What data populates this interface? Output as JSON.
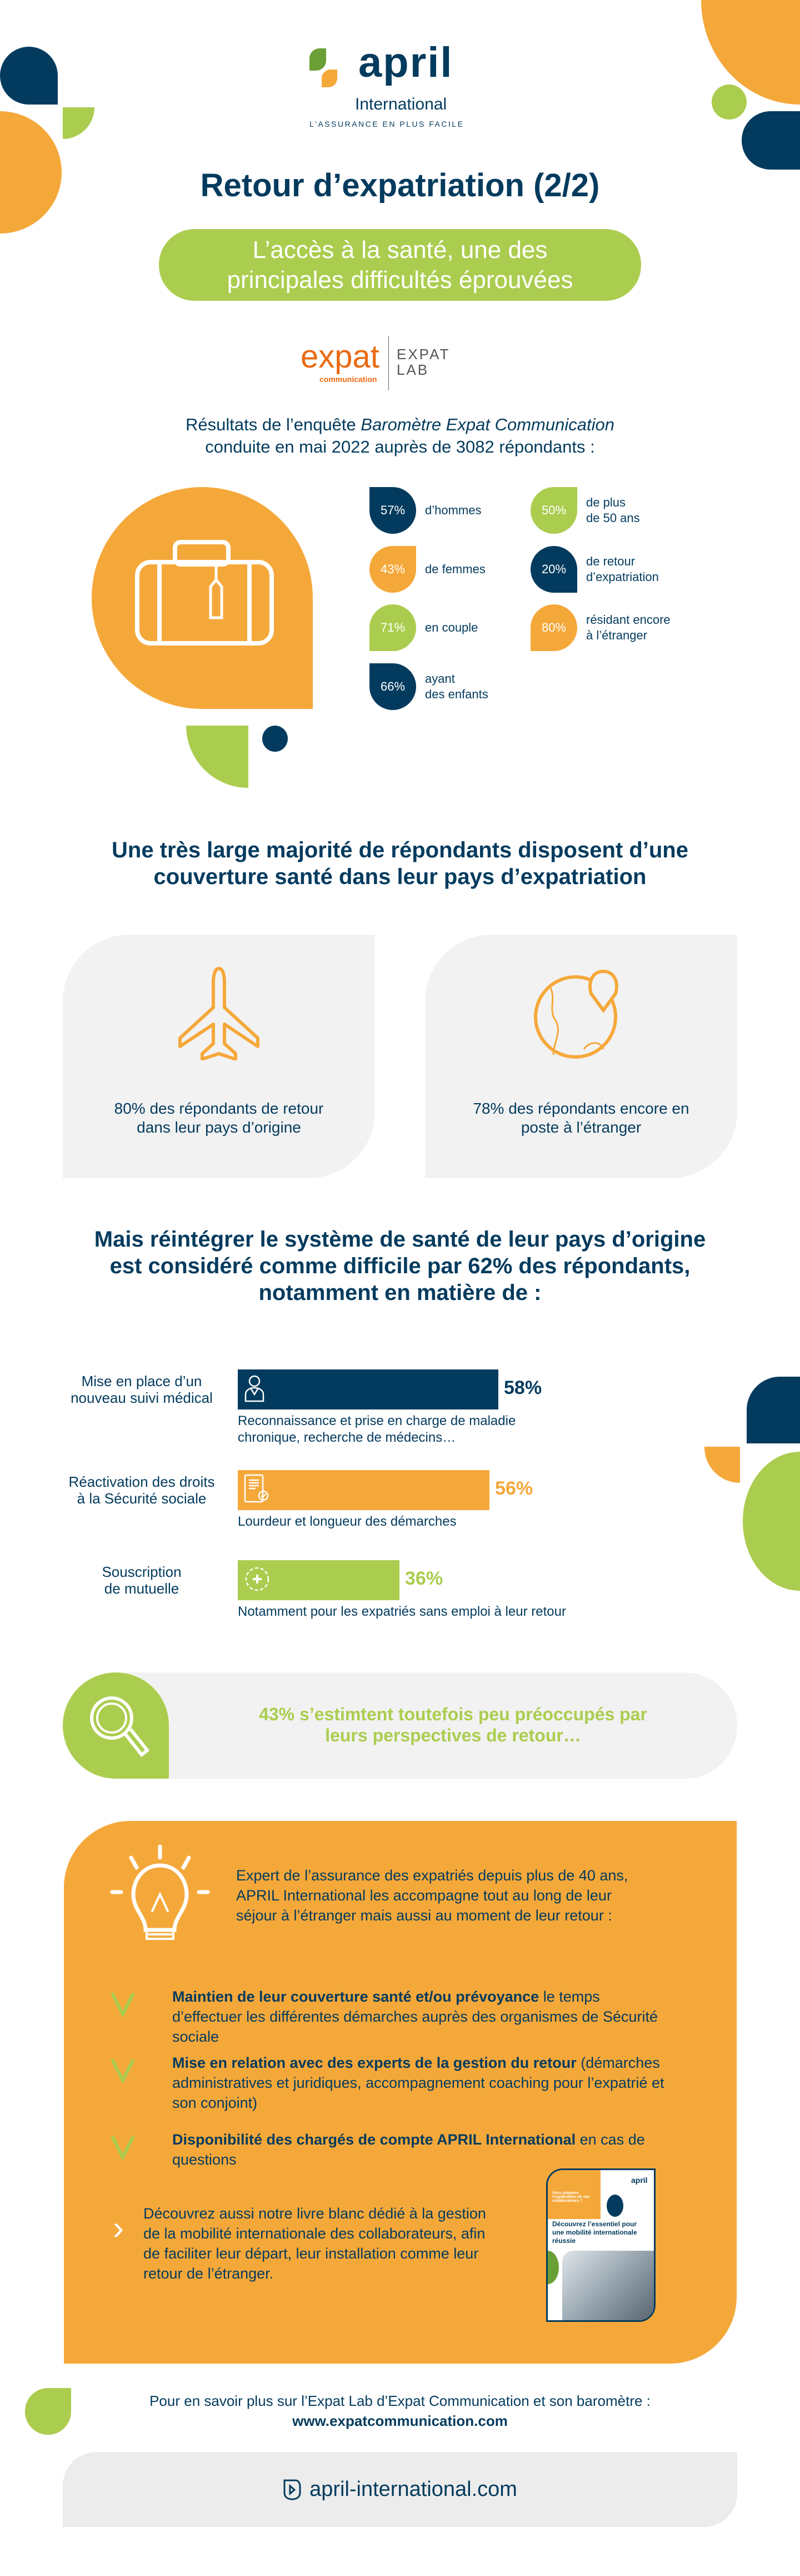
{
  "colors": {
    "navy": "#033b5e",
    "orange": "#f5a83a",
    "green": "#abcd4f",
    "light_gray": "#f2f2f2"
  },
  "logo": {
    "brand": "april",
    "sub": "International",
    "tagline": "L'ASSURANCE EN PLUS FACILE"
  },
  "title": "Retour d’expatriation (2/2)",
  "subtitle_lines": [
    "L’accès à la santé, une des",
    "principales difficultés éprouvées"
  ],
  "partner_logo": {
    "name": "expat",
    "sub": "communication",
    "lab_line1": "EXPAT",
    "lab_line2": "LAB"
  },
  "intro": {
    "prefix": "Résultats de l’enquête ",
    "italic": "Baromètre Expat Communication",
    "line2": "conduite en mai 2022 auprès de 3082 répondants :"
  },
  "stats": [
    {
      "value": "57%",
      "label": [
        "d’hommes"
      ],
      "color": "navy"
    },
    {
      "value": "43%",
      "label": [
        "de femmes"
      ],
      "color": "orange"
    },
    {
      "value": "71%",
      "label": [
        "en couple"
      ],
      "color": "green"
    },
    {
      "value": "66%",
      "label": [
        "ayant",
        "des enfants"
      ],
      "color": "navy"
    },
    {
      "value": "50%",
      "label": [
        "de plus",
        "de 50 ans"
      ],
      "color": "green"
    },
    {
      "value": "20%",
      "label": [
        "de retour",
        "d’expatriation"
      ],
      "color": "navy"
    },
    {
      "value": "80%",
      "label": [
        "résidant encore",
        "à l’étranger"
      ],
      "color": "orange"
    }
  ],
  "section2": {
    "heading": [
      "Une très large majorité de répondants disposent d’une",
      "couverture santé dans leur pays d’expatriation"
    ],
    "cards": [
      {
        "icon": "airplane-icon",
        "text": [
          "80% des répondants de retour",
          "dans leur pays d’origine"
        ]
      },
      {
        "icon": "globe-pin-icon",
        "text": [
          "78% des répondants encore en",
          "poste à l’étranger"
        ]
      }
    ]
  },
  "section3": {
    "heading": [
      "Mais réintégrer le système de santé de leur pays d’origine",
      "est considéré comme difficile par 62% des répondants,",
      "notamment en matière de :"
    ]
  },
  "chart_data": {
    "type": "bar",
    "orientation": "horizontal",
    "categories": [
      "Mise en place d’un nouveau suivi médical",
      "Réactivation des droits à la Sécurité sociale",
      "Souscription de mutuelle"
    ],
    "values": [
      58,
      56,
      36
    ],
    "unit": "%",
    "xlim": [
      0,
      100
    ],
    "category_lines": [
      [
        "Mise en place d’un",
        "nouveau suivi médical"
      ],
      [
        "Réactivation des droits",
        "à la Sécurité sociale"
      ],
      [
        "Souscription",
        "de mutuelle"
      ]
    ],
    "data_labels": [
      "58%",
      "56%",
      "36%"
    ],
    "colors": [
      "#033b5e",
      "#f5a83a",
      "#abcd4f"
    ],
    "icons": [
      "doctor-icon",
      "document-check-icon",
      "medical-cross-icon"
    ],
    "descriptions": [
      [
        "Reconnaissance et prise en charge de maladie",
        "chronique, recherche de médecins…"
      ],
      [
        "Lourdeur et longueur des démarches"
      ],
      [
        "Notamment pour les expatriés sans emploi à leur retour"
      ]
    ]
  },
  "callout": {
    "icon": "magnifier-icon",
    "lines": [
      "43% s’estimtent toutefois peu préoccupés par",
      "leurs perspectives de retour…"
    ]
  },
  "offer": {
    "intro": [
      "Expert de l’assurance des expatriés depuis plus de 40 ans,",
      "APRIL International les accompagne tout au long de leur",
      "séjour à l’étranger mais aussi au moment de leur retour :"
    ],
    "items": [
      {
        "bold": "Maintien de leur couverture santé et/ou prévoyance",
        "rest": " le temps d’effectuer les différentes démarches auprès des organismes de Sécurité sociale"
      },
      {
        "bold": "Mise en relation avec des experts de la gestion du retour",
        "rest": " (démarches administratives et juridiques, accompagnement coaching pour l’expatrié et son conjoint)"
      },
      {
        "bold": "Disponibilité des chargés de compte APRIL International",
        "rest": " en cas de questions"
      }
    ],
    "whitepaper": "Découvrez aussi notre livre blanc dédié à la gestion de la mobilité internationale des collaborateurs, afin de faciliter leur départ, leur installation comme leur retour de l’étranger.",
    "book": {
      "brand": "april",
      "question": "Vous préparez l’expatriation de vos collaborateurs ?",
      "title": "Découvrez l’essentiel pour une mobilité internationale réussie"
    }
  },
  "more_info": {
    "line1": "Pour en savoir plus sur l’Expat Lab d’Expat Communication et son baromètre :",
    "url": "www.expatcommunication.com"
  },
  "footer": {
    "url": "april-international.com"
  }
}
